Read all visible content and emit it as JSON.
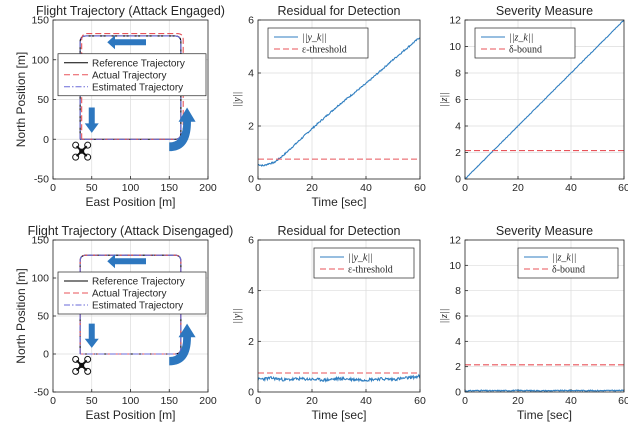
{
  "chart_data": [
    {
      "type": "line",
      "title": "Flight Trajectory (Attack Engaged)",
      "xlabel": "East Position [m]",
      "ylabel": "North Position [m]",
      "xlim": [
        0,
        200
      ],
      "ylim": [
        -50,
        150
      ],
      "xticks": [
        0,
        50,
        100,
        150,
        200
      ],
      "yticks": [
        -50,
        0,
        50,
        100,
        150
      ],
      "grid": true,
      "legend_position": "center",
      "series": [
        {
          "name": "Reference Trajectory",
          "color": "#000000",
          "style": "solid",
          "x": [
            35,
            35,
            165,
            165,
            35
          ],
          "y": [
            0,
            130,
            130,
            0,
            0
          ]
        },
        {
          "name": "Actual Trajectory",
          "color": "#e8535a",
          "style": "dashed",
          "x": [
            37,
            37,
            168,
            168,
            37
          ],
          "y": [
            0,
            133,
            133,
            0,
            0
          ]
        },
        {
          "name": "Estimated Trajectory",
          "color": "#6a6ad8",
          "style": "dashdot",
          "x": [
            35,
            35,
            165,
            165,
            35
          ],
          "y": [
            0,
            130,
            130,
            0,
            0
          ]
        }
      ],
      "icons": [
        "quadcopter-icon",
        "direction-arrow-left-icon",
        "direction-arrow-down-icon",
        "direction-arrow-up-icon"
      ]
    },
    {
      "type": "line",
      "title": "Residual for Detection",
      "xlabel": "Time [sec]",
      "ylabel": "||y||",
      "xlim": [
        0,
        60
      ],
      "ylim": [
        0,
        6
      ],
      "xticks": [
        0,
        20,
        40,
        60
      ],
      "yticks": [
        0,
        2,
        4,
        6
      ],
      "grid": true,
      "legend_position": "top-left",
      "series": [
        {
          "name": "||y_k||",
          "color": "#2f7ec0",
          "style": "solid",
          "x": [
            0,
            2,
            4,
            6,
            10,
            20,
            30,
            40,
            50,
            60
          ],
          "y": [
            0.55,
            0.5,
            0.58,
            0.62,
            0.95,
            1.9,
            2.8,
            3.6,
            4.5,
            5.35
          ]
        },
        {
          "name": "ε-threshold",
          "color": "#e8535a",
          "style": "dashed",
          "x": [
            0,
            60
          ],
          "y": [
            0.75,
            0.75
          ]
        }
      ]
    },
    {
      "type": "line",
      "title": "Severity Measure",
      "xlabel": "",
      "ylabel": "||z||",
      "xlim": [
        0,
        60
      ],
      "ylim": [
        0,
        12
      ],
      "xticks": [
        0,
        20,
        40,
        60
      ],
      "yticks": [
        0,
        2,
        4,
        6,
        8,
        10,
        12
      ],
      "grid": true,
      "legend_position": "top-left",
      "series": [
        {
          "name": "||z_k||",
          "color": "#2f7ec0",
          "style": "solid",
          "x": [
            0,
            60
          ],
          "y": [
            0,
            12
          ]
        },
        {
          "name": "δ-bound",
          "color": "#e8535a",
          "style": "dashed",
          "x": [
            0,
            60
          ],
          "y": [
            2.15,
            2.15
          ]
        }
      ]
    },
    {
      "type": "line",
      "title": "Flight Trajectory (Attack Disengaged)",
      "xlabel": "East Position [m]",
      "ylabel": "North Position [m]",
      "xlim": [
        0,
        200
      ],
      "ylim": [
        -50,
        150
      ],
      "xticks": [
        0,
        50,
        100,
        150,
        200
      ],
      "yticks": [
        -50,
        0,
        50,
        100,
        150
      ],
      "grid": true,
      "legend_position": "center",
      "series": [
        {
          "name": "Reference Trajectory",
          "color": "#000000",
          "style": "solid",
          "x": [
            35,
            35,
            165,
            165,
            35
          ],
          "y": [
            0,
            130,
            130,
            0,
            0
          ]
        },
        {
          "name": "Actual Trajectory",
          "color": "#e8535a",
          "style": "dashed",
          "x": [
            35,
            35,
            165,
            165,
            35
          ],
          "y": [
            0,
            130,
            130,
            0,
            0
          ]
        },
        {
          "name": "Estimated Trajectory",
          "color": "#6a6ad8",
          "style": "dashdot",
          "x": [
            35,
            35,
            165,
            165,
            35
          ],
          "y": [
            0,
            130,
            130,
            0,
            0
          ]
        }
      ],
      "icons": [
        "quadcopter-icon",
        "direction-arrow-left-icon",
        "direction-arrow-down-icon",
        "direction-arrow-up-icon"
      ]
    },
    {
      "type": "line",
      "title": "Residual for Detection",
      "xlabel": "Time [sec]",
      "ylabel": "||y||",
      "xlim": [
        0,
        60
      ],
      "ylim": [
        0,
        6
      ],
      "xticks": [
        0,
        20,
        40,
        60
      ],
      "yticks": [
        0,
        2,
        4,
        6
      ],
      "grid": true,
      "legend_position": "top-right",
      "series": [
        {
          "name": "||y_k||",
          "color": "#2f7ec0",
          "style": "solid",
          "x": [
            0,
            5,
            10,
            15,
            20,
            25,
            30,
            35,
            40,
            45,
            50,
            55,
            60
          ],
          "y": [
            0.5,
            0.55,
            0.48,
            0.52,
            0.5,
            0.47,
            0.53,
            0.5,
            0.48,
            0.52,
            0.5,
            0.55,
            0.62
          ]
        },
        {
          "name": "ε-threshold",
          "color": "#e8535a",
          "style": "dashed",
          "x": [
            0,
            60
          ],
          "y": [
            0.75,
            0.75
          ]
        }
      ]
    },
    {
      "type": "line",
      "title": "Severity Measure",
      "xlabel": "Time [sec]",
      "ylabel": "||z||",
      "xlim": [
        0,
        60
      ],
      "ylim": [
        0,
        12
      ],
      "xticks": [
        0,
        20,
        40,
        60
      ],
      "yticks": [
        0,
        2,
        4,
        6,
        8,
        10,
        12
      ],
      "grid": true,
      "legend_position": "top-right",
      "series": [
        {
          "name": "||z_k||",
          "color": "#2f7ec0",
          "style": "solid",
          "x": [
            0,
            5,
            10,
            20,
            30,
            40,
            50,
            60
          ],
          "y": [
            0.08,
            0.12,
            0.1,
            0.12,
            0.1,
            0.12,
            0.11,
            0.12
          ]
        },
        {
          "name": "δ-bound",
          "color": "#e8535a",
          "style": "dashed",
          "x": [
            0,
            60
          ],
          "y": [
            2.15,
            2.15
          ]
        }
      ]
    }
  ]
}
